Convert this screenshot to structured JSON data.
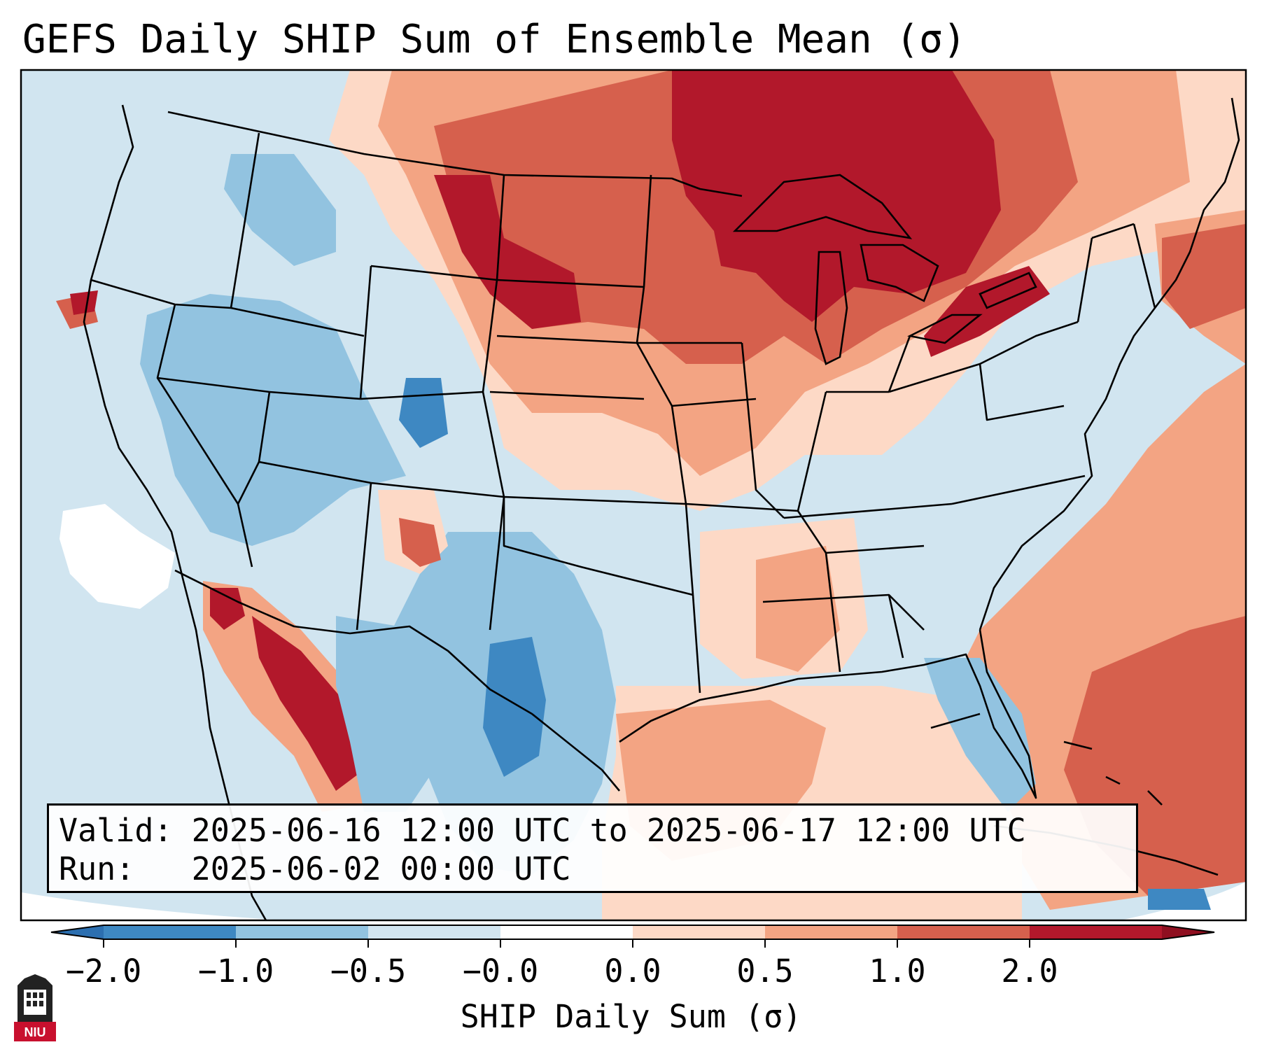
{
  "title": "GEFS Daily SHIP Sum of Ensemble Mean (σ)",
  "info": {
    "valid_label": "Valid:",
    "valid_text": "2025-06-16 12:00 UTC to 2025-06-17 12:00 UTC",
    "run_label": "Run:",
    "run_text": "2025-06-02 00:00 UTC"
  },
  "colorbar": {
    "label": "SHIP Daily Sum (σ)",
    "ticks": [
      "−2.0",
      "−1.0",
      "−0.5",
      "−0.0",
      "0.0",
      "0.5",
      "1.0",
      "2.0"
    ],
    "colors": [
      "#3e88c2",
      "#92c3e0",
      "#d2e5f0",
      "#ffffff",
      "#fdd9c6",
      "#f3a483",
      "#d6604d",
      "#b2182b"
    ],
    "under_color": "#2c6fb0",
    "over_color": "#8f0f20"
  },
  "palette": {
    "ocean": "#d1e5f0",
    "outside": "#ffffff",
    "state_lines": "#000000"
  },
  "logo": {
    "text": "NIU",
    "color": "#c8102e"
  }
}
